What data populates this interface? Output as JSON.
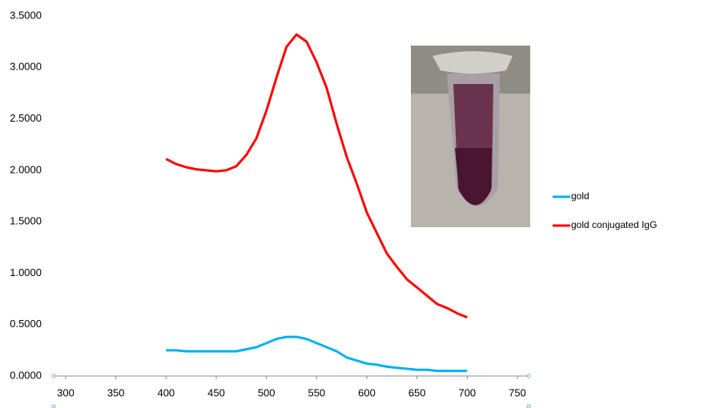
{
  "chart_data": {
    "type": "line",
    "x": [
      400,
      410,
      420,
      430,
      440,
      450,
      460,
      470,
      480,
      490,
      500,
      510,
      520,
      530,
      540,
      550,
      560,
      570,
      580,
      590,
      600,
      610,
      620,
      630,
      640,
      650,
      660,
      670,
      680,
      690,
      700
    ],
    "series": [
      {
        "name": "gold",
        "color": "#00b0f0",
        "values": [
          0.25,
          0.25,
          0.24,
          0.24,
          0.24,
          0.24,
          0.24,
          0.24,
          0.26,
          0.28,
          0.32,
          0.36,
          0.38,
          0.38,
          0.36,
          0.32,
          0.28,
          0.24,
          0.18,
          0.15,
          0.12,
          0.11,
          0.09,
          0.08,
          0.07,
          0.06,
          0.06,
          0.05,
          0.05,
          0.05,
          0.05
        ]
      },
      {
        "name": "gold conjugated  IgG",
        "color": "#ff0000",
        "values": [
          2.11,
          2.06,
          2.03,
          2.01,
          2.0,
          1.99,
          2.0,
          2.04,
          2.15,
          2.31,
          2.58,
          2.9,
          3.2,
          3.32,
          3.25,
          3.05,
          2.8,
          2.45,
          2.13,
          1.87,
          1.59,
          1.39,
          1.19,
          1.06,
          0.94,
          0.86,
          0.78,
          0.7,
          0.66,
          0.61,
          0.57
        ]
      }
    ],
    "xlim": [
      300,
      750
    ],
    "xticks": [
      300,
      350,
      400,
      450,
      500,
      550,
      600,
      650,
      700,
      750
    ],
    "ylim": [
      0,
      3.5
    ],
    "yticks": [
      {
        "value": 0,
        "label": "0.0000"
      },
      {
        "value": 0.5,
        "label": "0.5000"
      },
      {
        "value": 1,
        "label": "1.0000"
      },
      {
        "value": 1.5,
        "label": "1.5000"
      },
      {
        "value": 2,
        "label": "2.0000"
      },
      {
        "value": 2.5,
        "label": "2.5000"
      },
      {
        "value": 3,
        "label": "3.0000"
      },
      {
        "value": 3.5,
        "label": "3.5000"
      }
    ],
    "grid": false,
    "legend": "right"
  }
}
